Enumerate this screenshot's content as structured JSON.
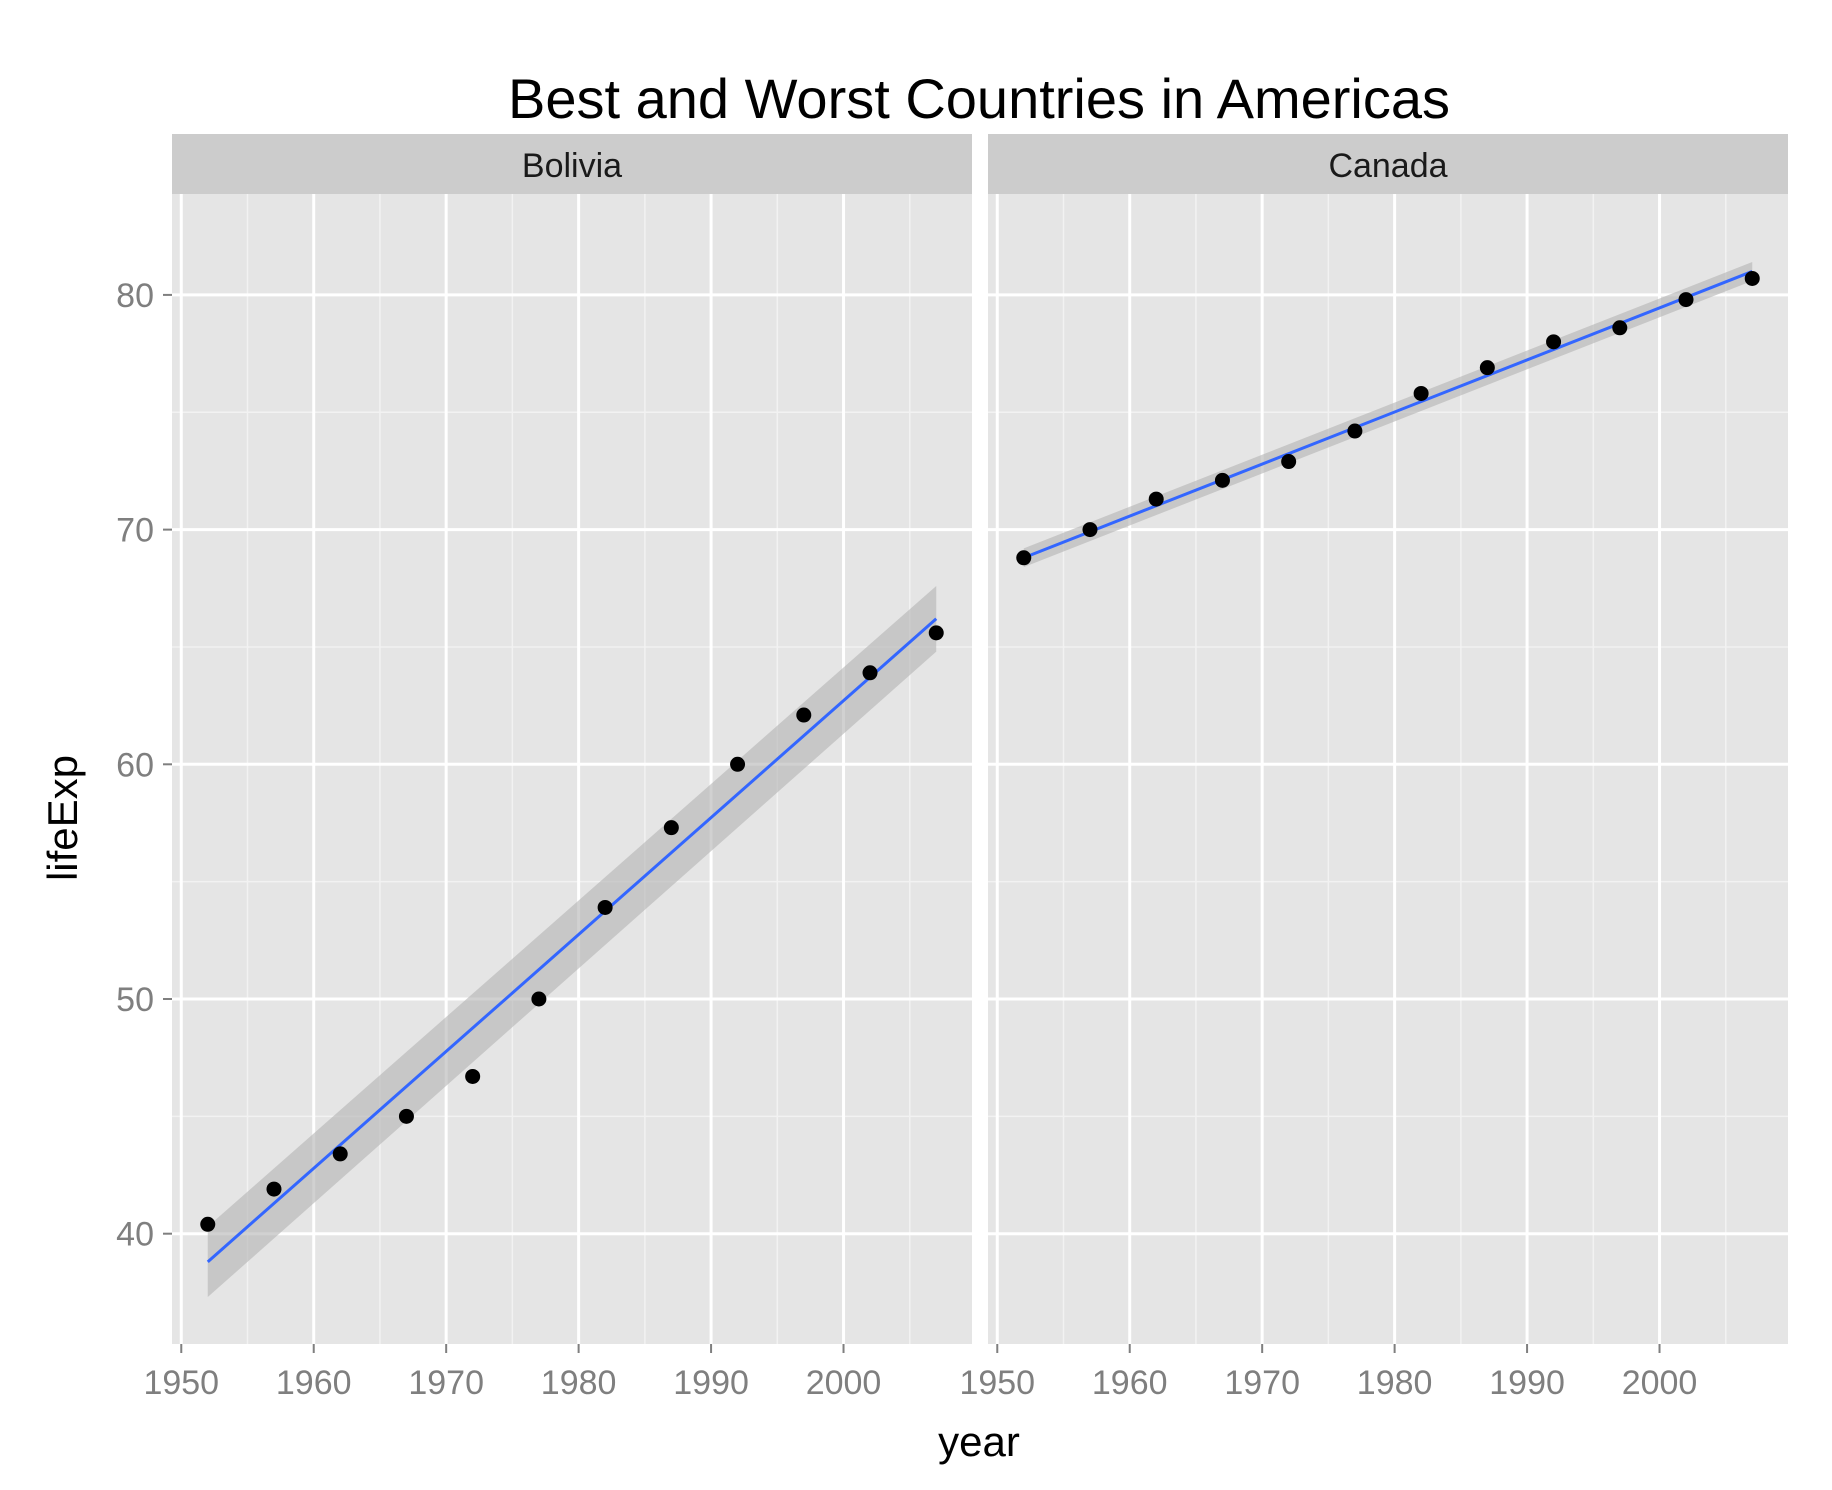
{
  "chart_data": {
    "type": "scatter",
    "title": "Best and Worst Countries in Americas",
    "xlabel": "year",
    "ylabel": "lifeExp",
    "xlim": [
      1949.3,
      2009.7
    ],
    "ylim": [
      35.3,
      84.3
    ],
    "x_ticks": [
      1950,
      1960,
      1970,
      1980,
      1990,
      2000
    ],
    "y_ticks": [
      40,
      50,
      60,
      70,
      80
    ],
    "grid": true,
    "legend": "none",
    "facets": [
      {
        "name": "Bolivia",
        "points": [
          {
            "x": 1952,
            "y": 40.4
          },
          {
            "x": 1957,
            "y": 41.9
          },
          {
            "x": 1962,
            "y": 43.4
          },
          {
            "x": 1967,
            "y": 45.0
          },
          {
            "x": 1972,
            "y": 46.7
          },
          {
            "x": 1977,
            "y": 50.0
          },
          {
            "x": 1982,
            "y": 53.9
          },
          {
            "x": 1987,
            "y": 57.3
          },
          {
            "x": 1992,
            "y": 60.0
          },
          {
            "x": 1997,
            "y": 62.1
          },
          {
            "x": 2002,
            "y": 63.9
          },
          {
            "x": 2007,
            "y": 65.6
          }
        ],
        "fit": {
          "x": [
            1952,
            2007
          ],
          "y": [
            38.8,
            66.2
          ],
          "ci_lower": [
            37.3,
            64.8
          ],
          "ci_upper": [
            40.3,
            67.6
          ]
        }
      },
      {
        "name": "Canada",
        "points": [
          {
            "x": 1952,
            "y": 68.8
          },
          {
            "x": 1957,
            "y": 70.0
          },
          {
            "x": 1962,
            "y": 71.3
          },
          {
            "x": 1967,
            "y": 72.1
          },
          {
            "x": 1972,
            "y": 72.9
          },
          {
            "x": 1977,
            "y": 74.2
          },
          {
            "x": 1982,
            "y": 75.8
          },
          {
            "x": 1987,
            "y": 76.9
          },
          {
            "x": 1992,
            "y": 78.0
          },
          {
            "x": 1997,
            "y": 78.6
          },
          {
            "x": 2002,
            "y": 79.8
          },
          {
            "x": 2007,
            "y": 80.7
          }
        ],
        "fit": {
          "x": [
            1952,
            2007
          ],
          "y": [
            68.8,
            81.0
          ],
          "ci_lower": [
            68.4,
            80.6
          ],
          "ci_upper": [
            69.2,
            81.4
          ]
        }
      }
    ],
    "colors": {
      "panel_bg": "#e5e5e5",
      "strip_bg": "#cccccc",
      "grid_major": "#ffffff",
      "grid_minor": "#f2f2f2",
      "point": "#000000",
      "fit_line": "#3366ff",
      "ci_band": "#b3b3b3"
    }
  }
}
